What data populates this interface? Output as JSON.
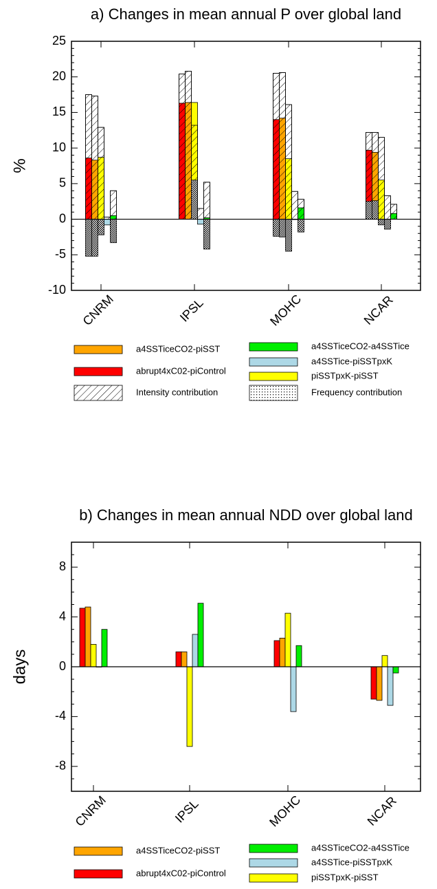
{
  "legend": {
    "a4SSTiceCO2-piSST": "a4SSTiceCO2-piSST",
    "abrupt4xC02-piControl": "abrupt4xC02-piControl",
    "a4SSTiceCO2-a4SSTice": "a4SSTiceCO2-a4SSTice",
    "a4SSTice-piSSTpxK": "a4SSTice-piSSTpxK",
    "piSSTpxK-piSST": "piSSTpxK-piSST",
    "intensity": "Intensity contribution",
    "frequency": "Frequency contribution"
  },
  "colors": {
    "abrupt4xC02-piControl": "#ff0000",
    "a4SSTiceCO2-piSST": "#ffa500",
    "piSSTpxK-piSST": "#ffff00",
    "a4SSTice-piSSTpxK": "#add8e6",
    "a4SSTiceCO2-a4SSTice": "#00ee00"
  },
  "chart_data": [
    {
      "type": "bar",
      "title": "a) Changes in mean annual P over global land",
      "ylabel": "%",
      "ylim": [
        -10,
        25
      ],
      "yticks": [
        -10,
        -5,
        0,
        5,
        10,
        15,
        20,
        25
      ],
      "categories": [
        "CNRM",
        "IPSL",
        "MOHC",
        "NCAR"
      ],
      "legend_entries": [
        "a4SSTiceCO2-piSST",
        "abrupt4xC02-piControl",
        "intensity",
        "a4SSTiceCO2-a4SSTice",
        "a4SSTice-piSSTpxK",
        "piSSTpxK-piSST",
        "frequency"
      ],
      "series": [
        {
          "key": "abrupt4xC02-piControl",
          "values": [
            8.6,
            16.3,
            14.0,
            9.7
          ],
          "intensity": [
            17.5,
            20.4,
            20.5,
            12.2
          ],
          "frequency": [
            -5.2,
            0,
            -2.4,
            2.5
          ]
        },
        {
          "key": "a4SSTiceCO2-piSST",
          "values": [
            8.3,
            16.4,
            14.2,
            9.4
          ],
          "intensity": [
            17.3,
            20.8,
            20.6,
            12.2
          ],
          "frequency": [
            -5.2,
            0,
            -2.5,
            2.6
          ]
        },
        {
          "key": "piSSTpxK-piSST",
          "values": [
            8.7,
            16.4,
            8.5,
            5.5
          ],
          "intensity": [
            12.9,
            13.2,
            16.1,
            11.5
          ],
          "frequency": [
            -2.2,
            5.5,
            -4.5,
            -0.8
          ]
        },
        {
          "key": "a4SSTice-piSSTpxK",
          "values": [
            -0.8,
            -0.7,
            0.0,
            -0.3
          ],
          "intensity": [
            0.3,
            1.5,
            3.9,
            3.3
          ],
          "frequency": [
            0.0,
            0.0,
            0.0,
            -1.4
          ]
        },
        {
          "key": "a4SSTiceCO2-a4SSTice",
          "values": [
            0.5,
            0.2,
            1.6,
            0.8
          ],
          "intensity": [
            4.0,
            5.2,
            2.8,
            2.1
          ],
          "frequency": [
            -3.3,
            -4.2,
            -1.8,
            0.0
          ]
        }
      ]
    },
    {
      "type": "bar",
      "title": "b) Changes in mean annual NDD over global land",
      "ylabel": "days",
      "ylim": [
        -10,
        10
      ],
      "yticks": [
        -8,
        -4,
        0,
        4,
        8
      ],
      "categories": [
        "CNRM",
        "IPSL",
        "MOHC",
        "NCAR"
      ],
      "legend_entries": [
        "a4SSTiceCO2-piSST",
        "abrupt4xC02-piControl",
        "a4SSTiceCO2-a4SSTice",
        "a4SSTice-piSSTpxK",
        "piSSTpxK-piSST"
      ],
      "series": [
        {
          "key": "abrupt4xC02-piControl",
          "values": [
            4.7,
            1.2,
            2.1,
            -2.6
          ]
        },
        {
          "key": "a4SSTiceCO2-piSST",
          "values": [
            4.8,
            1.2,
            2.3,
            -2.7
          ]
        },
        {
          "key": "piSSTpxK-piSST",
          "values": [
            1.8,
            -6.4,
            4.3,
            0.9
          ]
        },
        {
          "key": "a4SSTice-piSSTpxK",
          "values": [
            0.0,
            2.6,
            -3.6,
            -3.1
          ]
        },
        {
          "key": "a4SSTiceCO2-a4SSTice",
          "values": [
            3.0,
            5.1,
            1.7,
            -0.5
          ]
        }
      ]
    }
  ]
}
